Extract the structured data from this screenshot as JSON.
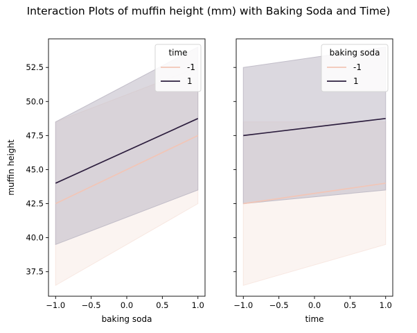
{
  "figure": {
    "title": "Interaction Plots of muffin height (mm) with Baking Soda and Time)"
  },
  "chart_data": [
    {
      "type": "line",
      "title": "",
      "xlabel": "baking soda",
      "ylabel": "muffin height",
      "xlim": [
        -1.1,
        1.1
      ],
      "ylim": [
        35.7,
        54.6
      ],
      "xticks": [
        "−1.0",
        "−0.5",
        "0.0",
        "0.5",
        "1.0"
      ],
      "xtick_values": [
        -1.0,
        -0.5,
        0.0,
        0.5,
        1.0
      ],
      "yticks": [
        "37.5",
        "40.0",
        "42.5",
        "45.0",
        "47.5",
        "50.0",
        "52.5"
      ],
      "ytick_values": [
        37.5,
        40.0,
        42.5,
        45.0,
        47.5,
        50.0,
        52.5
      ],
      "legend": {
        "title": "time",
        "placement": "top-right"
      },
      "x": [
        -1,
        1
      ],
      "series": [
        {
          "name": "-1",
          "color": "#f2c5b6",
          "band_color": "#f7e6df",
          "values": [
            42.5,
            47.5
          ],
          "ci_low": [
            36.5,
            42.5
          ],
          "ci_high": [
            48.5,
            52.5
          ]
        },
        {
          "name": "1",
          "color": "#2d1e3e",
          "band_color": "#bdb8c4",
          "values": [
            44.0,
            48.75
          ],
          "ci_low": [
            39.5,
            43.5
          ],
          "ci_high": [
            48.5,
            54.0
          ]
        }
      ]
    },
    {
      "type": "line",
      "title": "",
      "xlabel": "time",
      "ylabel": "",
      "xlim": [
        -1.1,
        1.1
      ],
      "ylim": [
        35.7,
        54.6
      ],
      "xticks": [
        "−1.0",
        "−0.5",
        "0.0",
        "0.5",
        "1.0"
      ],
      "xtick_values": [
        -1.0,
        -0.5,
        0.0,
        0.5,
        1.0
      ],
      "yticks": [],
      "ytick_values": [
        37.5,
        40.0,
        42.5,
        45.0,
        47.5,
        50.0,
        52.5
      ],
      "legend": {
        "title": "baking soda",
        "placement": "top-right"
      },
      "x": [
        -1,
        1
      ],
      "series": [
        {
          "name": "-1",
          "color": "#f2c5b6",
          "band_color": "#f7e6df",
          "values": [
            42.5,
            44.0
          ],
          "ci_low": [
            36.5,
            39.5
          ],
          "ci_high": [
            48.5,
            48.5
          ]
        },
        {
          "name": "1",
          "color": "#2d1e3e",
          "band_color": "#bdb8c4",
          "values": [
            47.5,
            48.75
          ],
          "ci_low": [
            42.5,
            43.5
          ],
          "ci_high": [
            52.5,
            54.0
          ]
        }
      ]
    }
  ]
}
